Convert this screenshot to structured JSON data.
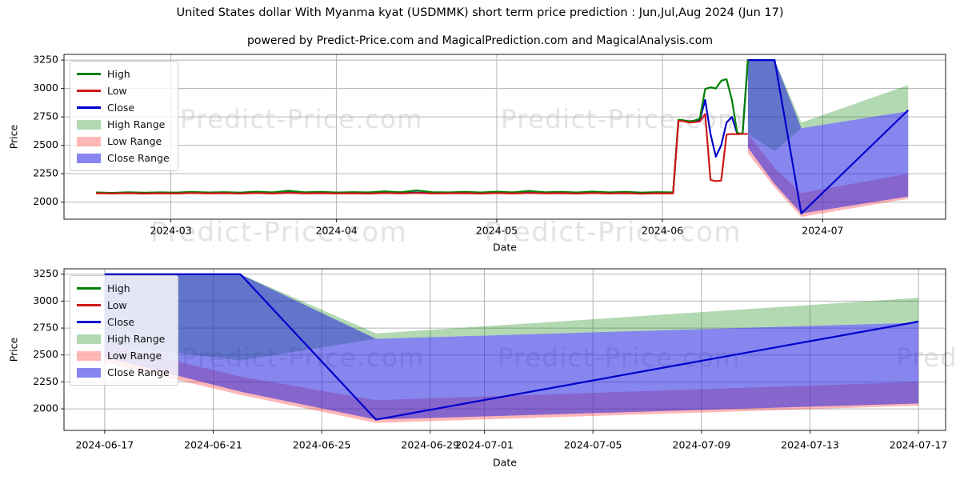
{
  "title": "United States dollar With Myanma kyat (USDMMK) short term price prediction : Jun,Jul,Aug 2024 (Jun 17)",
  "subtitle": "powered by Predict-Price.com and MagicalPrediction.com and MagicalAnalysis.com",
  "watermark": "Predict-Price.com",
  "watermark_dash": "-Predict-Price.com",
  "colors": {
    "high_line": "#008000",
    "low_line": "#d01818",
    "close_line": "#0000cd",
    "high_fill": "#008000",
    "low_fill": "#ff1111",
    "close_fill": "#2222e0",
    "grid": "#b3b3b3",
    "spine": "#1a1a1a",
    "tick_text": "#000000",
    "watermark": "#e3e3e3"
  },
  "legend": [
    {
      "label": "High",
      "kind": "line",
      "color": "#008000",
      "alpha": 1
    },
    {
      "label": "Low",
      "kind": "line",
      "color": "#d01818",
      "alpha": 1
    },
    {
      "label": "Close",
      "kind": "line",
      "color": "#0000cd",
      "alpha": 1
    },
    {
      "label": "High Range",
      "kind": "fill",
      "color": "#008000",
      "alpha": 0.3
    },
    {
      "label": "Low Range",
      "kind": "fill",
      "color": "#ff1111",
      "alpha": 0.3
    },
    {
      "label": "Close Range",
      "kind": "fill",
      "color": "#2222e0",
      "alpha": 0.55
    }
  ],
  "chart_data": [
    {
      "name": "overview",
      "type": "line",
      "xlabel": "Date",
      "ylabel": "Price",
      "grid": true,
      "legend_position": "upper left",
      "xlim": [
        "2024-02-10",
        "2024-07-24"
      ],
      "ylim": [
        1850,
        3300
      ],
      "xticks": [
        {
          "value": "2024-03-01",
          "label": "2024-03"
        },
        {
          "value": "2024-04-01",
          "label": "2024-04"
        },
        {
          "value": "2024-05-01",
          "label": "2024-05"
        },
        {
          "value": "2024-06-01",
          "label": "2024-06"
        },
        {
          "value": "2024-07-01",
          "label": "2024-07"
        }
      ],
      "yticks": [
        2000,
        2250,
        2500,
        2750,
        3000,
        3250
      ],
      "bands": [
        {
          "name": "High Range",
          "color": "#008000",
          "alpha": 0.3,
          "x": [
            "2024-06-17",
            "2024-06-22",
            "2024-06-27",
            "2024-07-17"
          ],
          "upper": [
            3250,
            3250,
            2700,
            3030
          ],
          "lower": [
            2600,
            2450,
            2650,
            2800
          ]
        },
        {
          "name": "Low Range",
          "color": "#ff1111",
          "alpha": 0.3,
          "x": [
            "2024-06-17",
            "2024-06-22",
            "2024-06-27",
            "2024-07-17"
          ],
          "upper": [
            2600,
            2300,
            2080,
            2250
          ],
          "lower": [
            2430,
            2130,
            1870,
            2030
          ]
        },
        {
          "name": "Close Range",
          "color": "#2222e0",
          "alpha": 0.55,
          "x": [
            "2024-06-17",
            "2024-06-22",
            "2024-06-27",
            "2024-07-17"
          ],
          "upper": [
            3250,
            3250,
            2650,
            2800
          ],
          "lower": [
            2480,
            2160,
            1900,
            2050
          ]
        }
      ],
      "series": [
        {
          "name": "Close",
          "color": "#0000cd",
          "width": 2.2,
          "points": [
            [
              "2024-02-16",
              2081
            ],
            [
              "2024-02-19",
              2079
            ],
            [
              "2024-02-22",
              2082
            ],
            [
              "2024-02-25",
              2078
            ],
            [
              "2024-02-28",
              2081
            ],
            [
              "2024-03-02",
              2079
            ],
            [
              "2024-03-05",
              2083
            ],
            [
              "2024-03-08",
              2080
            ],
            [
              "2024-03-11",
              2082
            ],
            [
              "2024-03-14",
              2078
            ],
            [
              "2024-03-17",
              2083
            ],
            [
              "2024-03-20",
              2079
            ],
            [
              "2024-03-23",
              2085
            ],
            [
              "2024-03-26",
              2080
            ],
            [
              "2024-03-29",
              2082
            ],
            [
              "2024-04-01",
              2079
            ],
            [
              "2024-04-04",
              2081
            ],
            [
              "2024-04-07",
              2078
            ],
            [
              "2024-04-10",
              2083
            ],
            [
              "2024-04-13",
              2080
            ],
            [
              "2024-04-16",
              2084
            ],
            [
              "2024-04-19",
              2079
            ],
            [
              "2024-04-22",
              2081
            ],
            [
              "2024-04-25",
              2082
            ],
            [
              "2024-04-28",
              2078
            ],
            [
              "2024-05-01",
              2083
            ],
            [
              "2024-05-04",
              2079
            ],
            [
              "2024-05-07",
              2084
            ],
            [
              "2024-05-10",
              2080
            ],
            [
              "2024-05-13",
              2082
            ],
            [
              "2024-05-16",
              2078
            ],
            [
              "2024-05-19",
              2083
            ],
            [
              "2024-05-22",
              2079
            ],
            [
              "2024-05-25",
              2082
            ],
            [
              "2024-05-28",
              2077
            ],
            [
              "2024-05-31",
              2081
            ],
            [
              "2024-06-03",
              2080
            ],
            [
              "2024-06-04",
              2720
            ],
            [
              "2024-06-05",
              2716
            ],
            [
              "2024-06-06",
              2706
            ],
            [
              "2024-06-07",
              2710
            ],
            [
              "2024-06-08",
              2722
            ],
            [
              "2024-06-09",
              2900
            ],
            [
              "2024-06-10",
              2600
            ],
            [
              "2024-06-11",
              2400
            ],
            [
              "2024-06-12",
              2500
            ],
            [
              "2024-06-13",
              2700
            ],
            [
              "2024-06-14",
              2750
            ],
            [
              "2024-06-15",
              2604
            ],
            [
              "2024-06-16",
              2600
            ],
            [
              "2024-06-17",
              3250
            ],
            [
              "2024-06-22",
              3250
            ],
            [
              "2024-06-27",
              1900
            ],
            [
              "2024-07-17",
              2810
            ]
          ]
        },
        {
          "name": "High",
          "color": "#008000",
          "width": 2.2,
          "points": [
            [
              "2024-02-16",
              2085
            ],
            [
              "2024-02-19",
              2082
            ],
            [
              "2024-02-22",
              2087
            ],
            [
              "2024-02-25",
              2083
            ],
            [
              "2024-02-28",
              2086
            ],
            [
              "2024-03-02",
              2084
            ],
            [
              "2024-03-05",
              2090
            ],
            [
              "2024-03-08",
              2085
            ],
            [
              "2024-03-11",
              2088
            ],
            [
              "2024-03-14",
              2084
            ],
            [
              "2024-03-17",
              2092
            ],
            [
              "2024-03-20",
              2086
            ],
            [
              "2024-03-23",
              2100
            ],
            [
              "2024-03-26",
              2087
            ],
            [
              "2024-03-29",
              2090
            ],
            [
              "2024-04-01",
              2085
            ],
            [
              "2024-04-04",
              2088
            ],
            [
              "2024-04-07",
              2086
            ],
            [
              "2024-04-10",
              2095
            ],
            [
              "2024-04-13",
              2087
            ],
            [
              "2024-04-16",
              2103
            ],
            [
              "2024-04-19",
              2088
            ],
            [
              "2024-04-22",
              2086
            ],
            [
              "2024-04-25",
              2090
            ],
            [
              "2024-04-28",
              2085
            ],
            [
              "2024-05-01",
              2092
            ],
            [
              "2024-05-04",
              2086
            ],
            [
              "2024-05-07",
              2098
            ],
            [
              "2024-05-10",
              2087
            ],
            [
              "2024-05-13",
              2090
            ],
            [
              "2024-05-16",
              2085
            ],
            [
              "2024-05-19",
              2093
            ],
            [
              "2024-05-22",
              2086
            ],
            [
              "2024-05-25",
              2090
            ],
            [
              "2024-05-28",
              2084
            ],
            [
              "2024-05-31",
              2088
            ],
            [
              "2024-06-03",
              2086
            ],
            [
              "2024-06-04",
              2725
            ],
            [
              "2024-06-05",
              2720
            ],
            [
              "2024-06-06",
              2712
            ],
            [
              "2024-06-07",
              2718
            ],
            [
              "2024-06-08",
              2735
            ],
            [
              "2024-06-09",
              2995
            ],
            [
              "2024-06-10",
              3010
            ],
            [
              "2024-06-11",
              3000
            ],
            [
              "2024-06-12",
              3068
            ],
            [
              "2024-06-13",
              3082
            ],
            [
              "2024-06-14",
              2900
            ],
            [
              "2024-06-15",
              2610
            ],
            [
              "2024-06-16",
              2600
            ],
            [
              "2024-06-17",
              3250
            ]
          ]
        },
        {
          "name": "Low",
          "color": "#d01818",
          "width": 2.2,
          "points": [
            [
              "2024-02-16",
              2078
            ],
            [
              "2024-02-19",
              2076
            ],
            [
              "2024-02-22",
              2079
            ],
            [
              "2024-02-25",
              2075
            ],
            [
              "2024-02-28",
              2078
            ],
            [
              "2024-03-02",
              2076
            ],
            [
              "2024-03-05",
              2080
            ],
            [
              "2024-03-08",
              2077
            ],
            [
              "2024-03-11",
              2079
            ],
            [
              "2024-03-14",
              2075
            ],
            [
              "2024-03-17",
              2080
            ],
            [
              "2024-03-20",
              2076
            ],
            [
              "2024-03-23",
              2082
            ],
            [
              "2024-03-26",
              2077
            ],
            [
              "2024-03-29",
              2079
            ],
            [
              "2024-04-01",
              2076
            ],
            [
              "2024-04-04",
              2078
            ],
            [
              "2024-04-07",
              2075
            ],
            [
              "2024-04-10",
              2080
            ],
            [
              "2024-04-13",
              2077
            ],
            [
              "2024-04-16",
              2081
            ],
            [
              "2024-04-19",
              2076
            ],
            [
              "2024-04-22",
              2078
            ],
            [
              "2024-04-25",
              2079
            ],
            [
              "2024-04-28",
              2075
            ],
            [
              "2024-05-01",
              2080
            ],
            [
              "2024-05-04",
              2076
            ],
            [
              "2024-05-07",
              2081
            ],
            [
              "2024-05-10",
              2077
            ],
            [
              "2024-05-13",
              2079
            ],
            [
              "2024-05-16",
              2075
            ],
            [
              "2024-05-19",
              2080
            ],
            [
              "2024-05-22",
              2076
            ],
            [
              "2024-05-25",
              2079
            ],
            [
              "2024-05-28",
              2074
            ],
            [
              "2024-05-31",
              2078
            ],
            [
              "2024-06-03",
              2077
            ],
            [
              "2024-06-04",
              2715
            ],
            [
              "2024-06-05",
              2712
            ],
            [
              "2024-06-06",
              2700
            ],
            [
              "2024-06-07",
              2704
            ],
            [
              "2024-06-08",
              2710
            ],
            [
              "2024-06-09",
              2775
            ],
            [
              "2024-06-10",
              2195
            ],
            [
              "2024-06-11",
              2185
            ],
            [
              "2024-06-12",
              2190
            ],
            [
              "2024-06-13",
              2595
            ],
            [
              "2024-06-14",
              2600
            ],
            [
              "2024-06-15",
              2598
            ],
            [
              "2024-06-16",
              2600
            ],
            [
              "2024-06-17",
              2600
            ]
          ]
        }
      ]
    },
    {
      "name": "forecast",
      "type": "line",
      "xlabel": "Date",
      "ylabel": "Price",
      "grid": true,
      "legend_position": "upper left",
      "xlim": [
        "2024-06-15T12:00:00Z",
        "2024-07-18T00:00:00Z"
      ],
      "ylim": [
        1800,
        3300
      ],
      "xticks": [
        {
          "value": "2024-06-17",
          "label": "2024-06-17"
        },
        {
          "value": "2024-06-21",
          "label": "2024-06-21"
        },
        {
          "value": "2024-06-25",
          "label": "2024-06-25"
        },
        {
          "value": "2024-06-29",
          "label": "2024-06-29"
        },
        {
          "value": "2024-07-01",
          "label": "2024-07-01"
        },
        {
          "value": "2024-07-05",
          "label": "2024-07-05"
        },
        {
          "value": "2024-07-09",
          "label": "2024-07-09"
        },
        {
          "value": "2024-07-13",
          "label": "2024-07-13"
        },
        {
          "value": "2024-07-17",
          "label": "2024-07-17"
        }
      ],
      "yticks": [
        2000,
        2250,
        2500,
        2750,
        3000,
        3250
      ],
      "bands": [
        {
          "name": "High Range",
          "color": "#008000",
          "alpha": 0.3,
          "x": [
            "2024-06-17",
            "2024-06-22",
            "2024-06-27",
            "2024-07-17"
          ],
          "upper": [
            3250,
            3250,
            2700,
            3030
          ],
          "lower": [
            2600,
            2450,
            2650,
            2800
          ]
        },
        {
          "name": "Low Range",
          "color": "#ff1111",
          "alpha": 0.3,
          "x": [
            "2024-06-17",
            "2024-06-22",
            "2024-06-27",
            "2024-07-17"
          ],
          "upper": [
            2600,
            2300,
            2080,
            2250
          ],
          "lower": [
            2430,
            2130,
            1870,
            2030
          ]
        },
        {
          "name": "Close Range",
          "color": "#2222e0",
          "alpha": 0.55,
          "x": [
            "2024-06-17",
            "2024-06-22",
            "2024-06-27",
            "2024-07-17"
          ],
          "upper": [
            3250,
            3250,
            2650,
            2800
          ],
          "lower": [
            2480,
            2160,
            1900,
            2050
          ]
        }
      ],
      "series": [
        {
          "name": "Close",
          "color": "#0000cd",
          "width": 2.2,
          "points": [
            [
              "2024-06-17",
              3250
            ],
            [
              "2024-06-22",
              3250
            ],
            [
              "2024-06-27",
              1900
            ],
            [
              "2024-07-17",
              2810
            ]
          ]
        }
      ]
    }
  ]
}
